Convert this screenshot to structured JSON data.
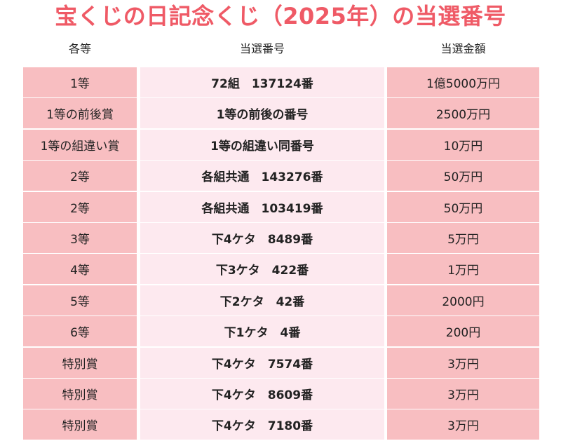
{
  "title": "宝くじの日記念くじ（2025年）の当選番号",
  "headers": {
    "grade": "各等",
    "number": "当選番号",
    "amount": "当選金額"
  },
  "rows": [
    {
      "grade": "1等",
      "number": "72組　137124番",
      "amount": "1億5000万円"
    },
    {
      "grade": "1等の前後賞",
      "number": "1等の前後の番号",
      "amount": "2500万円"
    },
    {
      "grade": "1等の組違い賞",
      "number": "1等の組違い同番号",
      "amount": "10万円"
    },
    {
      "grade": "2等",
      "number": "各組共通　143276番",
      "amount": "50万円"
    },
    {
      "grade": "2等",
      "number": "各組共通　103419番",
      "amount": "50万円"
    },
    {
      "grade": "3等",
      "number": "下4ケタ　8489番",
      "amount": "5万円"
    },
    {
      "grade": "4等",
      "number": "下3ケタ　422番",
      "amount": "1万円"
    },
    {
      "grade": "5等",
      "number": "下2ケタ　42番",
      "amount": "2000円"
    },
    {
      "grade": "6等",
      "number": "下1ケタ　4番",
      "amount": "200円"
    },
    {
      "grade": "特別賞",
      "number": "下4ケタ　7574番",
      "amount": "3万円"
    },
    {
      "grade": "特別賞",
      "number": "下4ケタ　8609番",
      "amount": "3万円"
    },
    {
      "grade": "特別賞",
      "number": "下4ケタ　7180番",
      "amount": "3万円"
    }
  ],
  "colors": {
    "title": "#ef5a66",
    "row_pink": "#f8bec1",
    "row_light": "#fde9ef"
  }
}
